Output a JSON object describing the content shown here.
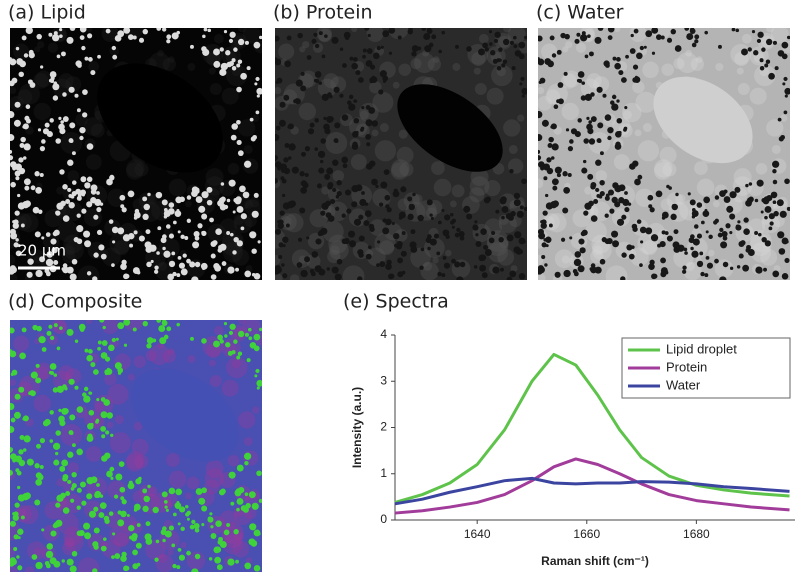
{
  "panels": [
    {
      "label": "(a)  Lipid",
      "scale_bar": "20 µm"
    },
    {
      "label": "(b)  Protein"
    },
    {
      "label": "(c)  Water"
    },
    {
      "label": "(d)  Composite"
    }
  ],
  "chart_data": {
    "type": "line",
    "title": "(e)  Spectra",
    "x_label": "Raman shift (cm⁻¹)",
    "y_label": "Intensity (a.u.)",
    "x": [
      1625,
      1630,
      1635,
      1640,
      1645,
      1650,
      1654,
      1658,
      1662,
      1666,
      1670,
      1675,
      1680,
      1685,
      1690,
      1697
    ],
    "series": [
      {
        "name": "Lipid droplet",
        "color": "#5ec34a",
        "values": [
          0.38,
          0.55,
          0.8,
          1.2,
          1.95,
          3.0,
          3.58,
          3.35,
          2.7,
          1.95,
          1.35,
          0.95,
          0.75,
          0.65,
          0.58,
          0.52
        ]
      },
      {
        "name": "Protein",
        "color": "#a23c9a",
        "values": [
          0.15,
          0.2,
          0.28,
          0.38,
          0.55,
          0.85,
          1.15,
          1.32,
          1.2,
          1.0,
          0.78,
          0.55,
          0.42,
          0.35,
          0.28,
          0.22
        ]
      },
      {
        "name": "Water",
        "color": "#3b45a0",
        "values": [
          0.35,
          0.45,
          0.6,
          0.72,
          0.85,
          0.9,
          0.8,
          0.78,
          0.8,
          0.8,
          0.83,
          0.82,
          0.78,
          0.72,
          0.68,
          0.62
        ]
      }
    ],
    "xlim": [
      1625,
      1698
    ],
    "ylim": [
      0,
      4
    ],
    "xticks": [
      1640,
      1660,
      1680
    ],
    "yticks": [
      0,
      1,
      2,
      3,
      4
    ],
    "legend": "upper right",
    "grid": false
  }
}
